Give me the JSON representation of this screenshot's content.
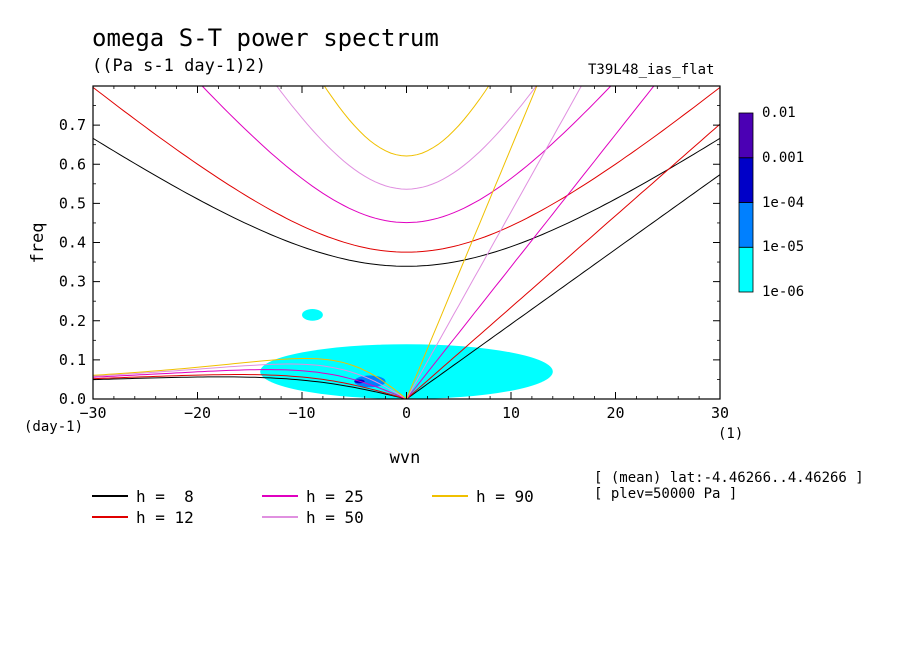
{
  "header": {
    "title": "omega S-T power spectrum",
    "units": "((Pa s-1 day-1)2)",
    "run_name": "T39L48_ias_flat"
  },
  "info": {
    "line1": "[ (mean) lat:-4.46266..4.46266 ]",
    "line2": "[ plev=50000 Pa ]"
  },
  "chart_data": {
    "type": "heatmap",
    "title": "omega S-T power spectrum",
    "xlabel": "wvn",
    "ylabel": "freq",
    "x_unit_label": "(1)",
    "y_unit_label": "(day-1)",
    "xlim": [
      -30,
      30
    ],
    "ylim": [
      0,
      0.8
    ],
    "xticks": [
      -30,
      -20,
      -10,
      0,
      10,
      20,
      30
    ],
    "yticks": [
      0.0,
      0.1,
      0.2,
      0.3,
      0.4,
      0.5,
      0.6,
      0.7
    ],
    "ytick_labels": [
      "0.0",
      "0.1",
      "0.2",
      "0.3",
      "0.4",
      "0.5",
      "0.6",
      "0.7"
    ],
    "colorbar": {
      "levels": [
        "1e-06",
        "1e-05",
        "1e-04",
        "0.001",
        "0.01"
      ],
      "colors": [
        "#00ffff",
        "#0080ff",
        "#0000c8",
        "#4b00b4"
      ]
    },
    "dispersion_curves": [
      {
        "label": "h =  8",
        "h": 8,
        "color": "#000000"
      },
      {
        "label": "h = 12",
        "h": 12,
        "color": "#e00000"
      },
      {
        "label": "h = 25",
        "h": 25,
        "color": "#e000c0"
      },
      {
        "label": "h = 50",
        "h": 50,
        "color": "#e090e0"
      },
      {
        "label": "h = 90",
        "h": 90,
        "color": "#f0c000"
      }
    ],
    "power_regions": [
      {
        "wvn": [
          -14,
          14
        ],
        "freq": [
          0.0,
          0.14
        ],
        "level": "1e-06"
      },
      {
        "wvn": [
          -10,
          -8
        ],
        "freq": [
          0.2,
          0.23
        ],
        "level": "1e-06"
      },
      {
        "wvn": [
          -5,
          -2
        ],
        "freq": [
          0.03,
          0.06
        ],
        "level": "1e-05"
      },
      {
        "wvn": [
          -5,
          -4
        ],
        "freq": [
          0.04,
          0.05
        ],
        "level": "1e-04"
      }
    ]
  }
}
